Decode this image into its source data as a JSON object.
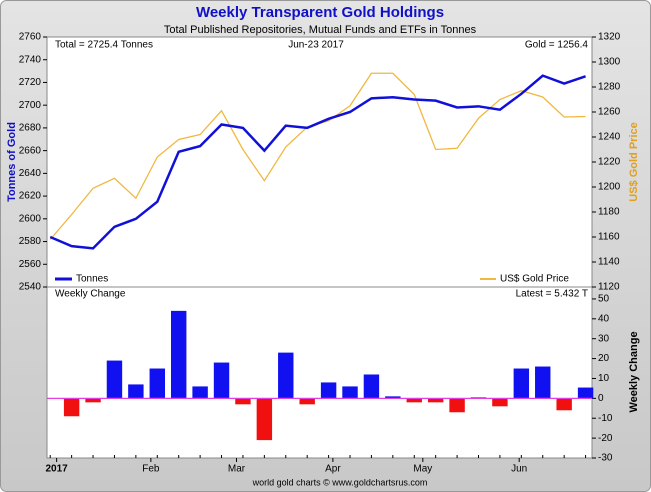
{
  "chart_data": [
    {
      "type": "line",
      "title": "Weekly Transparent Gold Holdings",
      "subtitle": "Total Published Repositories, Mutual Funds and ETFs in Tonnes",
      "annotations": [
        "Total = 2725.4 Tonnes",
        "Jun-23  2017",
        "Gold = 1256.4"
      ],
      "ylabel": "Tonnes of Gold",
      "y2label": "US$ Gold Price",
      "xlim": [
        -0.15,
        25.3
      ],
      "ylim": [
        2540,
        2760
      ],
      "yticks": [
        2540,
        2560,
        2580,
        2600,
        2620,
        2640,
        2660,
        2680,
        2700,
        2720,
        2740,
        2760
      ],
      "y2lim": [
        1120,
        1320
      ],
      "y2ticks": [
        1120,
        1140,
        1160,
        1180,
        1200,
        1220,
        1240,
        1260,
        1280,
        1300,
        1320
      ],
      "series": [
        {
          "name": "Tonnes",
          "color": "#1010d8",
          "axis": "y",
          "values": [
            2584,
            2576,
            2574,
            2593,
            2600,
            2615,
            2659,
            2664,
            2683,
            2680,
            2660,
            2682,
            2680,
            2688,
            2694,
            2706,
            2707,
            2705,
            2704,
            2698,
            2699,
            2696,
            2710,
            2726,
            2719,
            2725.4
          ]
        },
        {
          "name": "US$ Gold Price",
          "color": "#f0b840",
          "axis": "y2",
          "values": [
            1158,
            1178,
            1199,
            1207,
            1191,
            1224,
            1238,
            1242,
            1261,
            1230,
            1205,
            1232,
            1248,
            1253,
            1265,
            1291,
            1291,
            1274,
            1230,
            1231,
            1255,
            1270,
            1277,
            1272,
            1256,
            1256.4
          ]
        }
      ]
    },
    {
      "type": "bar",
      "title": "Weekly Change",
      "annotation": "Latest = 5.432 T",
      "y2label": "Weekly Change",
      "xlim": [
        -0.15,
        25.3
      ],
      "xticks": [
        {
          "value": 0.3,
          "label": "2017"
        },
        {
          "value": 4.7,
          "label": "Feb"
        },
        {
          "value": 8.7,
          "label": "Mar"
        },
        {
          "value": 13.2,
          "label": "Apr"
        },
        {
          "value": 17.4,
          "label": "May"
        },
        {
          "value": 21.9,
          "label": "Jun"
        }
      ],
      "ylim": [
        -30,
        56
      ],
      "yticks": [
        -30,
        -20,
        -10,
        0,
        10,
        20,
        30,
        40,
        50
      ],
      "positive_color": "#1010f0",
      "negative_color": "#f01010",
      "zero_line_color": "#e040e0",
      "values": [
        -9,
        -2,
        19,
        7,
        15,
        44,
        6,
        18,
        -3,
        -21,
        23,
        -3,
        8,
        6,
        12,
        1,
        -2,
        -2,
        -7,
        0.5,
        -4,
        15,
        16,
        -6,
        5.432
      ]
    },
    {
      "type": "footer",
      "text": "world gold charts © www.goldchartsrus.com"
    }
  ]
}
